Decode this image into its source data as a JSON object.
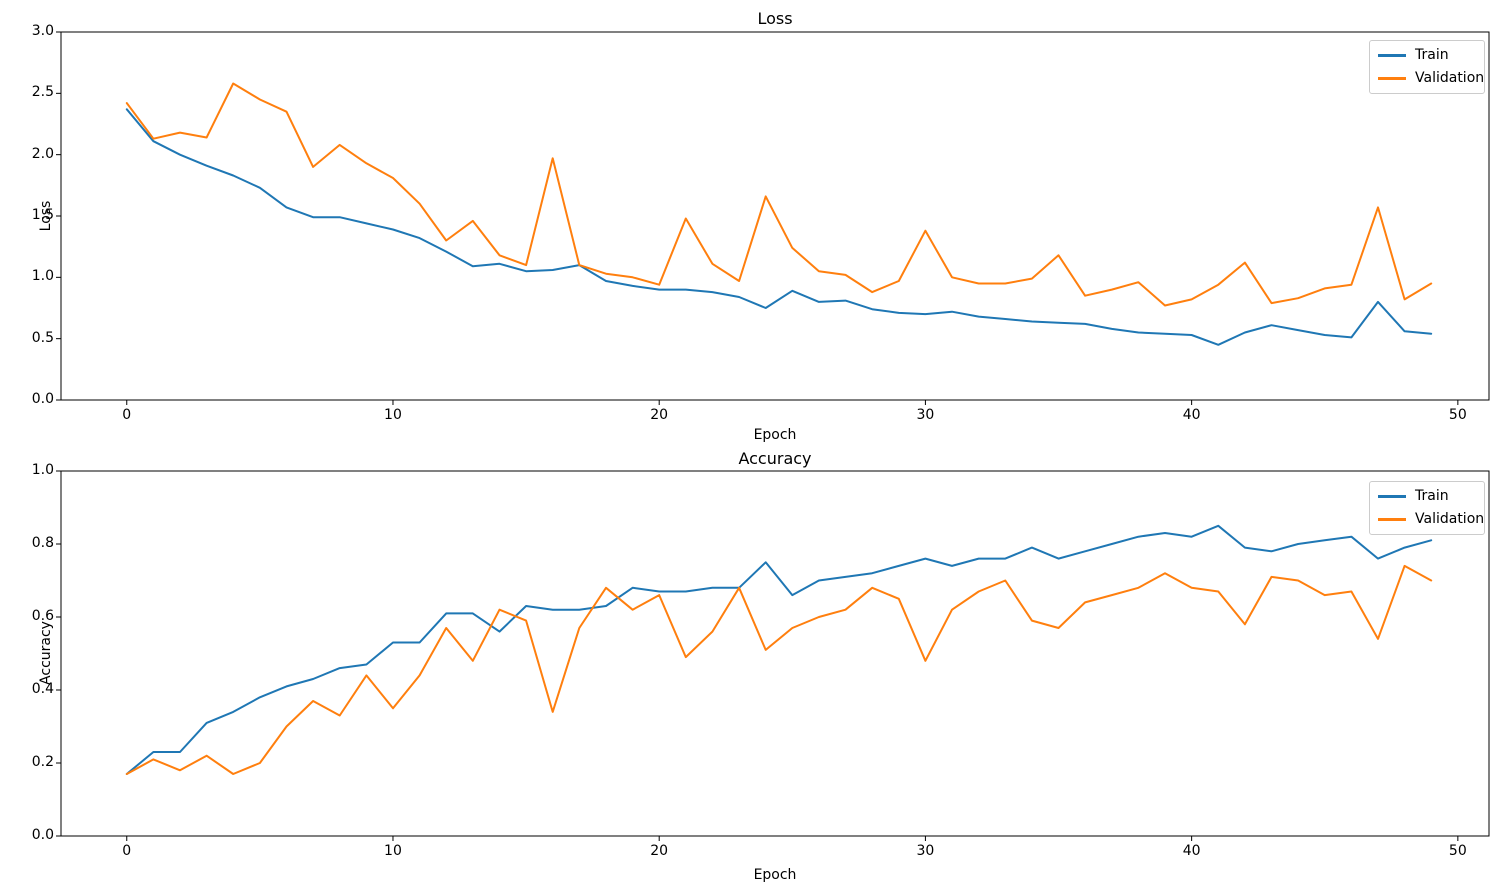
{
  "figure": {
    "background": "#ffffff"
  },
  "colors": {
    "train": "#1f77b4",
    "validation": "#ff7f0e",
    "spine": "#000000"
  },
  "chart_data": [
    {
      "type": "line",
      "title": "Loss",
      "xlabel": "Epoch",
      "ylabel": "Loss",
      "xlim": [
        -2.47,
        51.17
      ],
      "ylim": [
        0,
        3
      ],
      "xticks": [
        0,
        10,
        20,
        30,
        40,
        50
      ],
      "yticks": [
        "0.0",
        "0.5",
        "1.0",
        "1.5",
        "2.0",
        "2.5",
        "3.0"
      ],
      "grid": false,
      "legend_position": "upper right",
      "x_start": 0,
      "series": [
        {
          "name": "Train",
          "color": "#1f77b4",
          "values": [
            2.37,
            2.11,
            2.0,
            1.91,
            1.83,
            1.73,
            1.57,
            1.49,
            1.49,
            1.44,
            1.39,
            1.32,
            1.21,
            1.09,
            1.11,
            1.05,
            1.06,
            1.1,
            0.97,
            0.93,
            0.9,
            0.9,
            0.88,
            0.84,
            0.75,
            0.89,
            0.8,
            0.81,
            0.74,
            0.71,
            0.7,
            0.72,
            0.68,
            0.66,
            0.64,
            0.63,
            0.62,
            0.58,
            0.55,
            0.54,
            0.53,
            0.45,
            0.55,
            0.61,
            0.57,
            0.53,
            0.51,
            0.8,
            0.56,
            0.54
          ]
        },
        {
          "name": "Validation",
          "color": "#ff7f0e",
          "values": [
            2.42,
            2.13,
            2.18,
            2.14,
            2.58,
            2.45,
            2.35,
            1.9,
            2.08,
            1.93,
            1.81,
            1.6,
            1.3,
            1.46,
            1.18,
            1.1,
            1.97,
            1.1,
            1.03,
            1.0,
            0.94,
            1.48,
            1.11,
            0.97,
            1.66,
            1.24,
            1.05,
            1.02,
            0.88,
            0.97,
            1.38,
            1.0,
            0.95,
            0.95,
            0.99,
            1.18,
            0.85,
            0.9,
            0.96,
            0.77,
            0.82,
            0.94,
            1.12,
            0.79,
            0.83,
            0.91,
            0.94,
            1.57,
            0.82,
            0.95
          ]
        }
      ]
    },
    {
      "type": "line",
      "title": "Accuracy",
      "xlabel": "Epoch",
      "ylabel": "Accuracy",
      "xlim": [
        -2.47,
        51.17
      ],
      "ylim": [
        0,
        1
      ],
      "xticks": [
        0,
        10,
        20,
        30,
        40,
        50
      ],
      "yticks": [
        "0.0",
        "0.2",
        "0.4",
        "0.6",
        "0.8",
        "1.0"
      ],
      "grid": false,
      "legend_position": "upper right",
      "x_start": 0,
      "series": [
        {
          "name": "Train",
          "color": "#1f77b4",
          "values": [
            0.17,
            0.23,
            0.23,
            0.31,
            0.34,
            0.38,
            0.41,
            0.43,
            0.46,
            0.47,
            0.53,
            0.53,
            0.61,
            0.61,
            0.56,
            0.63,
            0.62,
            0.62,
            0.63,
            0.68,
            0.67,
            0.67,
            0.68,
            0.68,
            0.75,
            0.66,
            0.7,
            0.71,
            0.72,
            0.74,
            0.76,
            0.74,
            0.76,
            0.76,
            0.79,
            0.76,
            0.78,
            0.8,
            0.82,
            0.83,
            0.82,
            0.85,
            0.79,
            0.78,
            0.8,
            0.81,
            0.82,
            0.76,
            0.79,
            0.81
          ]
        },
        {
          "name": "Validation",
          "color": "#ff7f0e",
          "values": [
            0.17,
            0.21,
            0.18,
            0.22,
            0.17,
            0.2,
            0.3,
            0.37,
            0.33,
            0.44,
            0.35,
            0.44,
            0.57,
            0.48,
            0.62,
            0.59,
            0.34,
            0.57,
            0.68,
            0.62,
            0.66,
            0.49,
            0.56,
            0.68,
            0.51,
            0.57,
            0.6,
            0.62,
            0.68,
            0.65,
            0.48,
            0.62,
            0.67,
            0.7,
            0.59,
            0.57,
            0.64,
            0.66,
            0.68,
            0.72,
            0.68,
            0.67,
            0.58,
            0.71,
            0.7,
            0.66,
            0.67,
            0.54,
            0.74,
            0.7
          ]
        }
      ]
    }
  ]
}
